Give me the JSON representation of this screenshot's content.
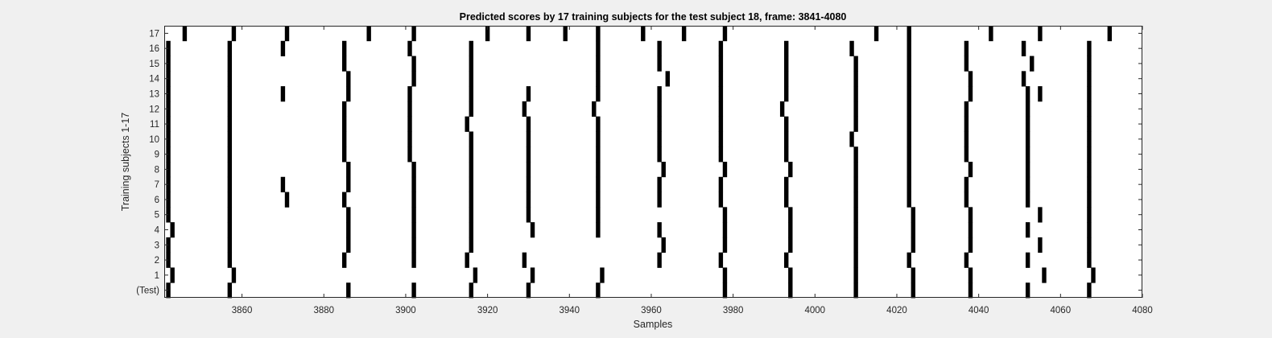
{
  "chart_data": {
    "type": "scatter",
    "title": "Predicted scores by 17 training subjects for the test subject 18, frame: 3841-4080",
    "xlabel": "Samples",
    "ylabel": "Training subjects 1-17",
    "xlim": [
      3841,
      4080
    ],
    "xticks": [
      3860,
      3880,
      3900,
      3920,
      3940,
      3960,
      3980,
      4000,
      4020,
      4040,
      4060,
      4080
    ],
    "ytick_labels": [
      "(Test)",
      "1",
      "2",
      "3",
      "4",
      "5",
      "6",
      "7",
      "8",
      "9",
      "10",
      "11",
      "12",
      "13",
      "14",
      "15",
      "16",
      "17"
    ],
    "grid": false,
    "marker_color": "#000000",
    "rows": [
      {
        "label": "(Test)",
        "x": [
          3842,
          3857,
          3886,
          3902,
          3916,
          3930,
          3947,
          3978,
          3994,
          4010,
          4024,
          4038,
          4052,
          4067
        ]
      },
      {
        "label": "1",
        "x": [
          3843,
          3858,
          3917,
          3931,
          3948,
          3978,
          3994,
          4010,
          4024,
          4038,
          4056,
          4068
        ]
      },
      {
        "label": "2",
        "x": [
          3842,
          3857,
          3885,
          3902,
          3915,
          3929,
          3962,
          3977,
          3993,
          4010,
          4023,
          4037,
          4052,
          4067
        ]
      },
      {
        "label": "3",
        "x": [
          3842,
          3857,
          3886,
          3902,
          3916,
          3963,
          3978,
          3994,
          4010,
          4024,
          4038,
          4055,
          4067
        ]
      },
      {
        "label": "4",
        "x": [
          3843,
          3857,
          3886,
          3902,
          3916,
          3931,
          3947,
          3962,
          3978,
          3994,
          4010,
          4024,
          4038,
          4052,
          4067
        ]
      },
      {
        "label": "5",
        "x": [
          3842,
          3857,
          3886,
          3902,
          3916,
          3930,
          3947,
          3978,
          3994,
          4010,
          4024,
          4038,
          4055,
          4067
        ]
      },
      {
        "label": "6",
        "x": [
          3842,
          3857,
          3871,
          3885,
          3902,
          3916,
          3930,
          3947,
          3962,
          3977,
          3993,
          4010,
          4023,
          4037,
          4052,
          4067
        ]
      },
      {
        "label": "7",
        "x": [
          3842,
          3857,
          3870,
          3886,
          3902,
          3916,
          3930,
          3947,
          3962,
          3977,
          3993,
          4010,
          4023,
          4037,
          4052,
          4067
        ]
      },
      {
        "label": "8",
        "x": [
          3842,
          3857,
          3886,
          3902,
          3916,
          3930,
          3947,
          3963,
          3978,
          3994,
          4010,
          4023,
          4038,
          4052,
          4067
        ]
      },
      {
        "label": "9",
        "x": [
          3842,
          3857,
          3885,
          3901,
          3916,
          3930,
          3947,
          3962,
          3977,
          3993,
          4010,
          4023,
          4037,
          4052,
          4067
        ]
      },
      {
        "label": "10",
        "x": [
          3842,
          3857,
          3885,
          3901,
          3916,
          3930,
          3947,
          3962,
          3977,
          3993,
          4009,
          4023,
          4037,
          4052,
          4067
        ]
      },
      {
        "label": "11",
        "x": [
          3842,
          3857,
          3885,
          3901,
          3915,
          3930,
          3947,
          3962,
          3977,
          3993,
          4010,
          4023,
          4037,
          4052,
          4067
        ]
      },
      {
        "label": "12",
        "x": [
          3842,
          3857,
          3885,
          3901,
          3916,
          3929,
          3946,
          3962,
          3977,
          3992,
          4010,
          4023,
          4037,
          4052,
          4067
        ]
      },
      {
        "label": "13",
        "x": [
          3842,
          3857,
          3870,
          3886,
          3901,
          3916,
          3930,
          3947,
          3962,
          3977,
          3993,
          4010,
          4023,
          4038,
          4052,
          4055,
          4067
        ]
      },
      {
        "label": "14",
        "x": [
          3842,
          3857,
          3886,
          3902,
          3916,
          3947,
          3964,
          3977,
          3993,
          4010,
          4023,
          4038,
          4051,
          4067
        ]
      },
      {
        "label": "15",
        "x": [
          3842,
          3857,
          3885,
          3902,
          3916,
          3947,
          3962,
          3977,
          3993,
          4010,
          4023,
          4037,
          4053,
          4067
        ]
      },
      {
        "label": "16",
        "x": [
          3842,
          3857,
          3870,
          3885,
          3901,
          3916,
          3947,
          3962,
          3977,
          3993,
          4009,
          4023,
          4037,
          4051,
          4067
        ]
      },
      {
        "label": "17",
        "x": [
          3846,
          3858,
          3871,
          3891,
          3902,
          3920,
          3930,
          3939,
          3947,
          3958,
          3968,
          3978,
          4015,
          4023,
          4043,
          4055,
          4072
        ]
      }
    ]
  }
}
